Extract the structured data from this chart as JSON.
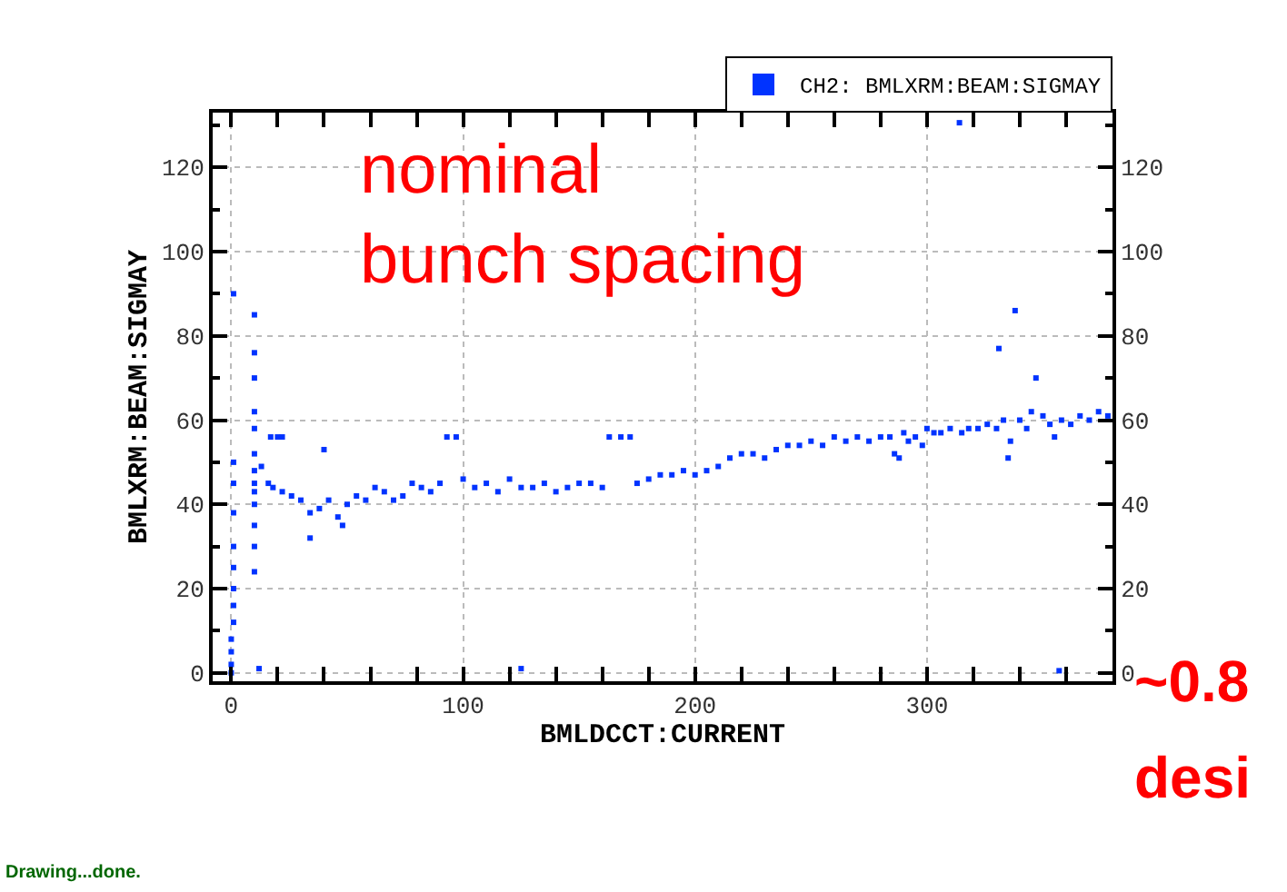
{
  "chart_data": {
    "type": "scatter",
    "xlabel": "BMLDCCT:CURRENT",
    "ylabel": "BMLXRM:BEAM:SIGMAY",
    "y2label": null,
    "annotations": [
      "nominal\nbunch spacing",
      "~0.8",
      "desi",
      "Drawing...done."
    ],
    "xlim": [
      -8,
      380
    ],
    "xticks": [
      0,
      100,
      200,
      300
    ],
    "ylim": [
      -2,
      133
    ],
    "yticks": [
      0,
      20,
      40,
      60,
      80,
      100,
      120
    ],
    "y2lim": [
      -2,
      133
    ],
    "y2ticks": [
      0,
      20,
      40,
      60,
      80,
      100,
      120
    ],
    "grid": true,
    "legend": "top right",
    "marker": "square",
    "series": [
      {
        "name": "CH2: BMLXRM:BEAM:SIGMAY",
        "color": "#0033ff",
        "x": [
          0,
          0,
          0,
          0,
          1,
          1,
          1,
          1,
          1,
          1,
          1,
          1,
          1,
          10,
          10,
          10,
          10,
          10,
          10,
          10,
          10,
          10,
          10,
          10,
          10,
          10,
          12,
          125,
          17,
          20,
          22,
          13,
          16,
          18,
          22,
          26,
          30,
          34,
          34,
          38,
          40,
          42,
          46,
          48,
          50,
          54,
          58,
          62,
          66,
          70,
          74,
          78,
          82,
          86,
          90,
          93,
          97,
          100,
          105,
          110,
          115,
          120,
          125,
          130,
          135,
          140,
          145,
          150,
          155,
          160,
          163,
          168,
          172,
          175,
          180,
          185,
          190,
          195,
          200,
          205,
          210,
          215,
          220,
          225,
          230,
          235,
          240,
          245,
          250,
          255,
          260,
          265,
          270,
          275,
          280,
          284,
          286,
          288,
          290,
          292,
          295,
          298,
          300,
          303,
          306,
          310,
          314,
          315,
          318,
          322,
          326,
          330,
          331,
          333,
          335,
          336,
          338,
          340,
          343,
          345,
          347,
          350,
          353,
          355,
          357,
          358,
          362,
          366,
          370,
          374,
          378
        ],
        "values": [
          0,
          2,
          5,
          8,
          12,
          16,
          20,
          25,
          30,
          38,
          45,
          50,
          90,
          24,
          30,
          35,
          40,
          43,
          45,
          48,
          52,
          58,
          62,
          70,
          76,
          85,
          1,
          1,
          56,
          56,
          56,
          49,
          45,
          44,
          43,
          42,
          41,
          38,
          32,
          39,
          53,
          41,
          37,
          35,
          40,
          42,
          41,
          44,
          43,
          41,
          42,
          45,
          44,
          43,
          45,
          56,
          56,
          46,
          44,
          45,
          43,
          46,
          44,
          44,
          45,
          43,
          44,
          45,
          45,
          44,
          56,
          56,
          56,
          45,
          46,
          47,
          47,
          48,
          47,
          48,
          49,
          51,
          52,
          52,
          51,
          53,
          54,
          54,
          55,
          54,
          56,
          55,
          56,
          55,
          56,
          56,
          52,
          51,
          57,
          55,
          56,
          54,
          58,
          57,
          57,
          58,
          130.6,
          57,
          58,
          58,
          59,
          58,
          77,
          60,
          51,
          55,
          86,
          60,
          58,
          62,
          70,
          61,
          59,
          56,
          0.5,
          60,
          59,
          61,
          60,
          62,
          61
        ]
      }
    ]
  }
}
